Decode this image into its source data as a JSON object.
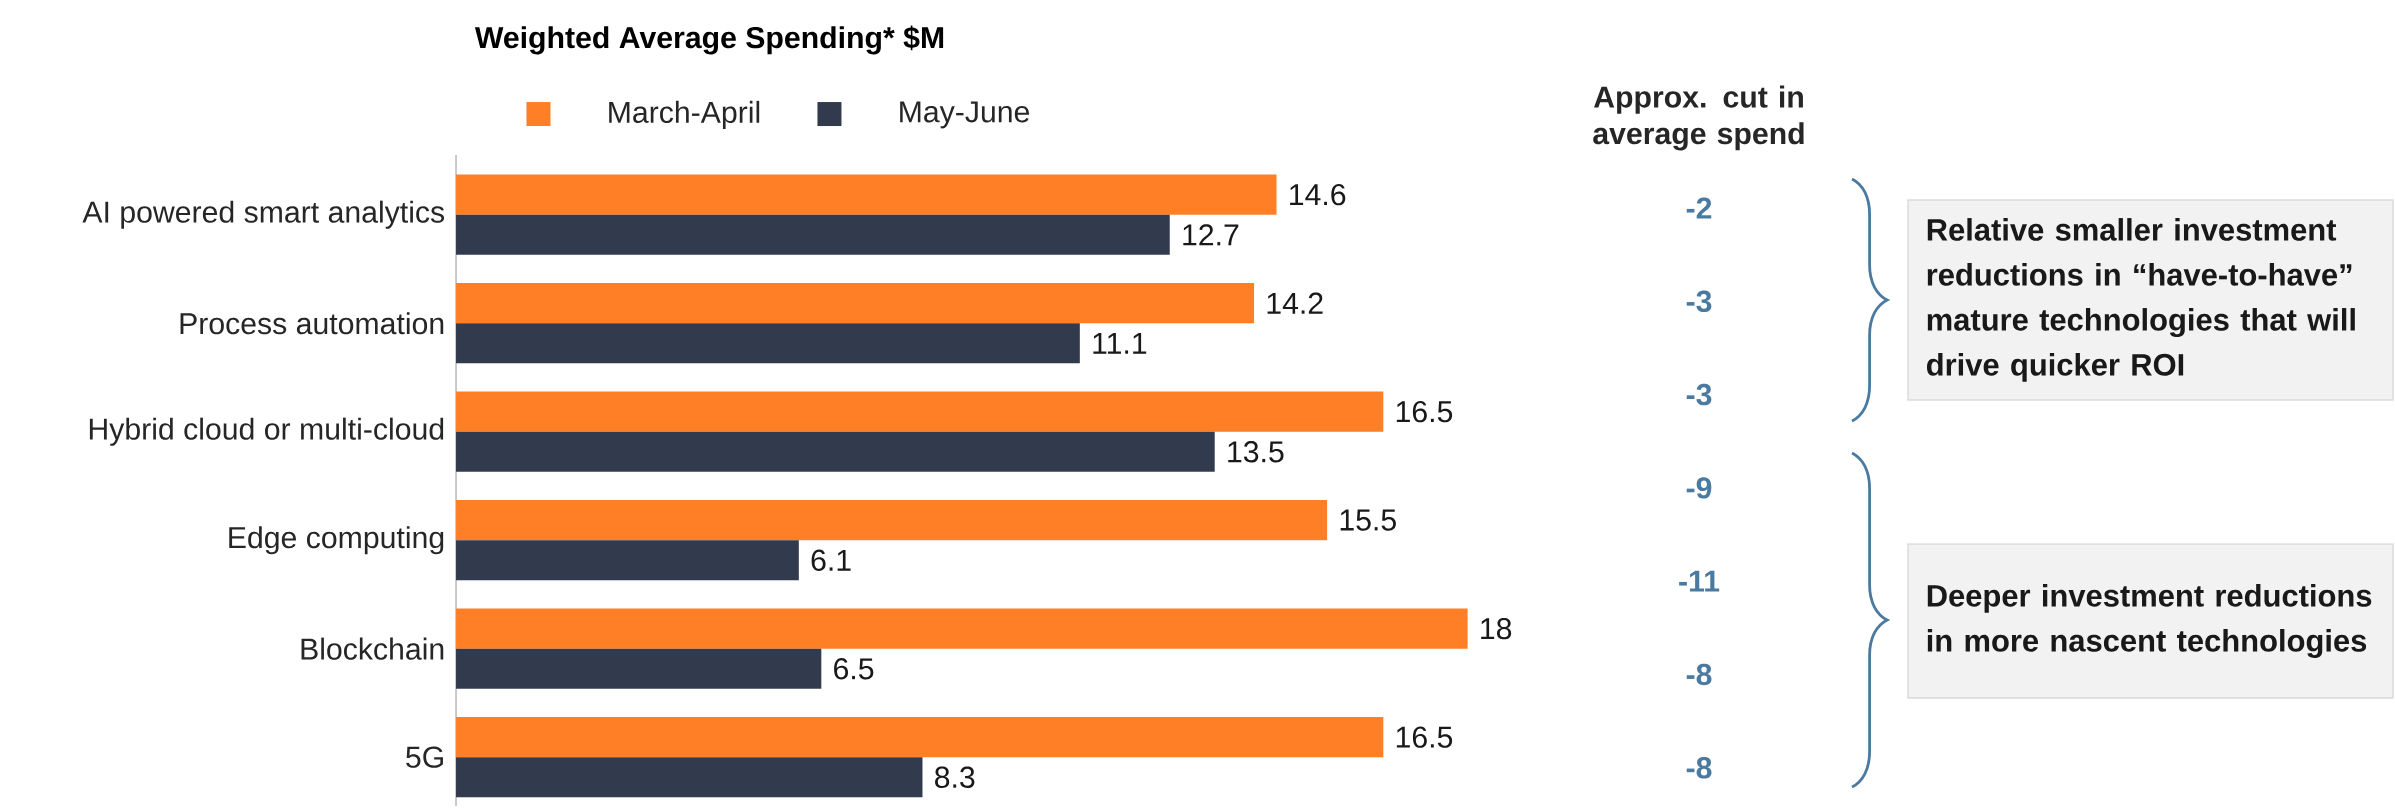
{
  "chart_data": {
    "type": "bar",
    "orientation": "horizontal",
    "title": "Weighted Average Spending* $M",
    "categories": [
      "AI powered smart analytics",
      "Process automation",
      "Hybrid cloud or multi-cloud",
      "Edge computing",
      "Blockchain",
      "5G"
    ],
    "series": [
      {
        "name": "March-April",
        "color": "#ff7f27",
        "values": [
          14.6,
          14.2,
          16.5,
          15.5,
          18,
          16.5
        ]
      },
      {
        "name": "May-June",
        "color": "#323a4e",
        "values": [
          12.7,
          11.1,
          13.5,
          6.1,
          6.5,
          8.3
        ]
      }
    ],
    "data_labels": true,
    "legend": "top",
    "annotations": [
      "Approx. cut in average spend",
      "-2",
      "-3",
      "-3",
      "-9",
      "-11",
      "-8",
      "-8",
      "Relative smaller investment reductions in “have-to-have” mature technologies that will drive quicker ROI",
      "Deeper investment reductions in more nascent technologies"
    ]
  }
}
